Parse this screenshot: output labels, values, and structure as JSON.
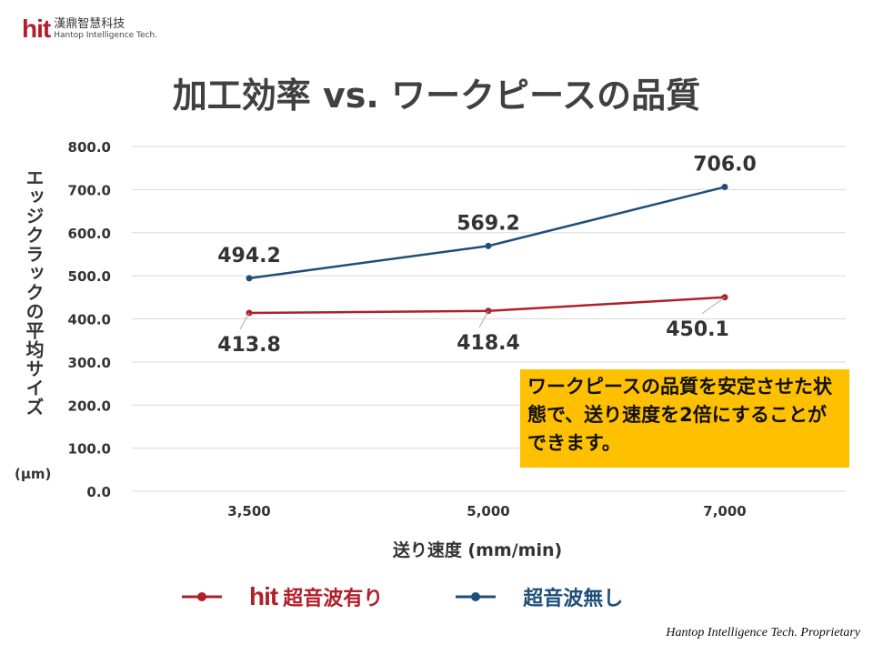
{
  "logo": {
    "brand": "hit",
    "name_cn": "漢鼎智慧科技",
    "name_en": "Hantop Intelligence Tech."
  },
  "note": "ワークピースの品質を安定させた状態で、送り速度を2倍にすることができます。",
  "footer": "Hantop Intelligence Tech. Proprietary",
  "chart_data": {
    "type": "line",
    "title": "加工効率 vs. ワークピースの品質",
    "xlabel": "送り速度 (mm/min)",
    "ylabel": "エッジクラックの平均サイズ",
    "yunit": "(μm)",
    "categories": [
      "3,500",
      "5,000",
      "7,000"
    ],
    "ylim": [
      0,
      800
    ],
    "yticks": [
      "0.0",
      "100.0",
      "200.0",
      "300.0",
      "400.0",
      "500.0",
      "600.0",
      "700.0",
      "800.0"
    ],
    "grid": true,
    "legend_position": "bottom",
    "series": [
      {
        "name": "超音波有り",
        "brand": "hit",
        "color": "#b0202a",
        "values": [
          413.8,
          418.4,
          450.1
        ],
        "labels": [
          "413.8",
          "418.4",
          "450.1"
        ]
      },
      {
        "name": "超音波無し",
        "color": "#1f4e79",
        "values": [
          494.2,
          569.2,
          706.0
        ],
        "labels": [
          "494.2",
          "569.2",
          "706.0"
        ]
      }
    ]
  }
}
